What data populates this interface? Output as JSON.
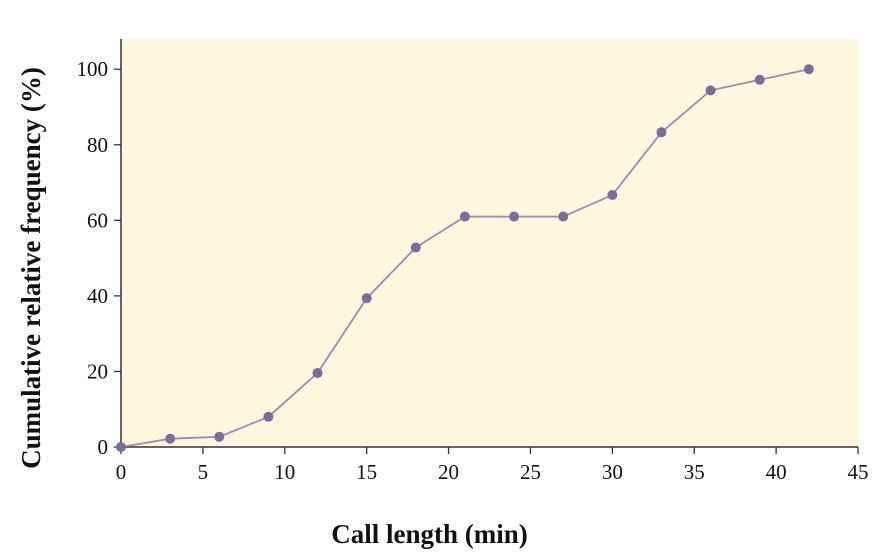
{
  "chart_data": {
    "type": "line",
    "title": "",
    "xlabel": "Call length (min)",
    "ylabel": "Cumulative relative frequency (%)",
    "xlim": [
      0,
      45
    ],
    "ylim": [
      0,
      108
    ],
    "x_ticks": [
      0,
      5,
      10,
      15,
      20,
      25,
      30,
      35,
      40,
      45
    ],
    "y_ticks": [
      0,
      20,
      40,
      60,
      80,
      100
    ],
    "grid": false,
    "legend": "none",
    "series": [
      {
        "x": [
          0,
          3,
          6,
          9,
          12,
          15,
          18,
          21,
          24,
          27,
          30,
          33,
          36,
          39,
          42
        ],
        "y": [
          0,
          2.2,
          2.7,
          8,
          19.6,
          39.4,
          52.8,
          61,
          61,
          61,
          66.7,
          83.3,
          94.4,
          97.2,
          100
        ]
      }
    ],
    "colors": {
      "plot_background": "#fdf8dd",
      "line": "#9a8bb8",
      "marker": "#7d6b9e",
      "axis": "#333333"
    }
  }
}
